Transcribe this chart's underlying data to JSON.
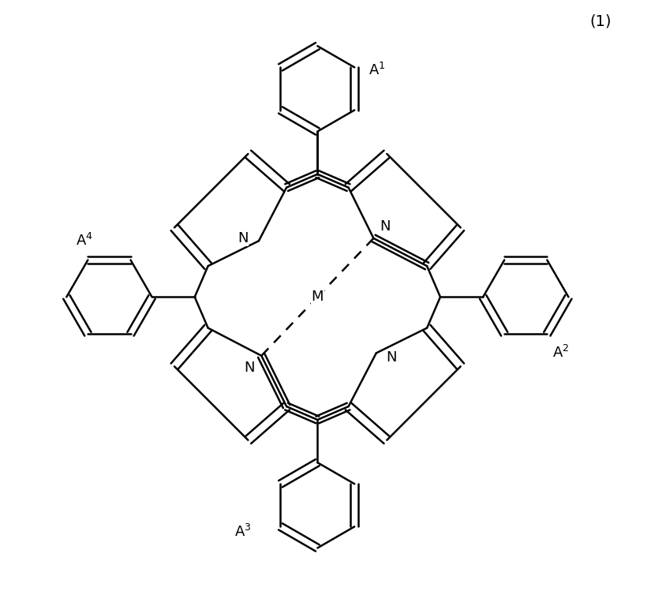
{
  "bg_color": "#ffffff",
  "line_width": 1.8,
  "metal": "M",
  "label_fontsize": 13,
  "title": "(1)",
  "title_fontsize": 14,
  "N_labels": [
    "N",
    "N",
    "N",
    "N"
  ],
  "A_labels": [
    "A$^1$",
    "A$^2$",
    "A$^3$",
    "A$^4$"
  ],
  "dash_pattern": [
    5,
    4
  ]
}
